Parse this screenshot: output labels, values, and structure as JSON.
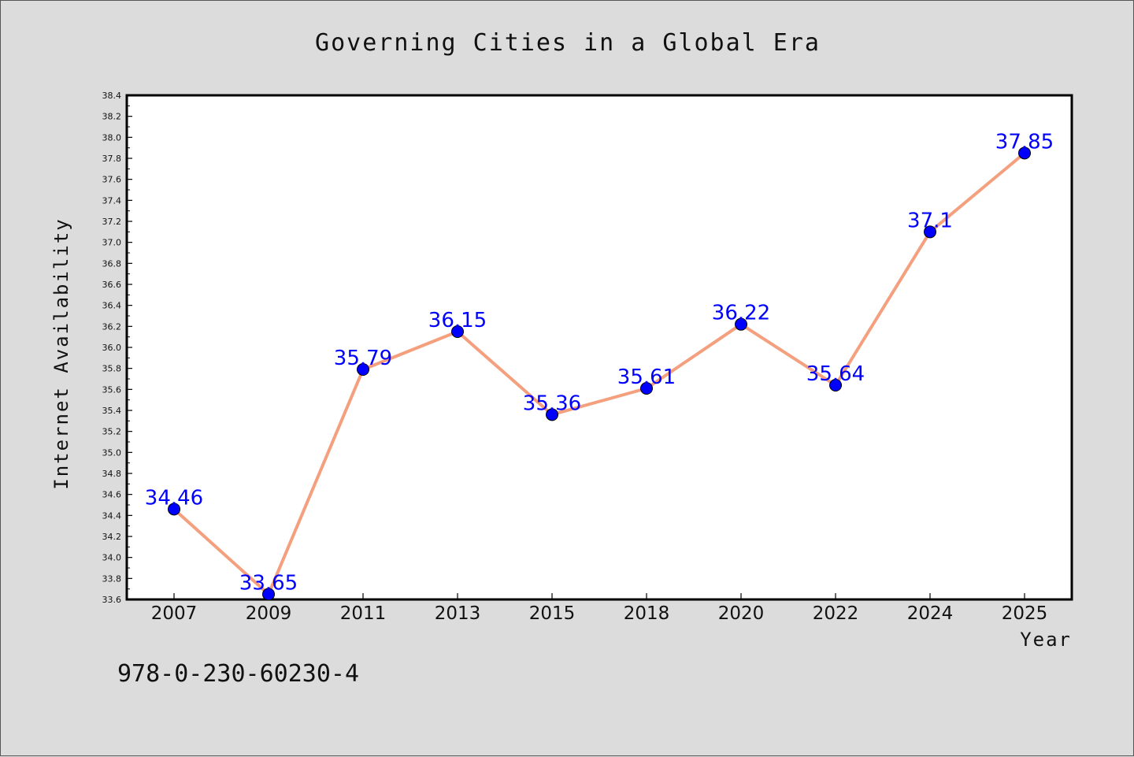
{
  "chart_data": {
    "type": "line",
    "title": "Governing Cities in a Global Era",
    "xlabel": "Year",
    "ylabel": "Internet Availability",
    "categories": [
      "2007",
      "2009",
      "2011",
      "2013",
      "2015",
      "2018",
      "2020",
      "2022",
      "2024",
      "2025"
    ],
    "values": [
      34.46,
      33.65,
      35.79,
      36.15,
      35.36,
      35.61,
      36.22,
      35.64,
      37.1,
      37.85
    ],
    "data_labels": [
      "34.46",
      "33.65",
      "35.79",
      "36.15",
      "35.36",
      "35.61",
      "36.22",
      "35.64",
      "37.1",
      "37.85"
    ],
    "ylim": [
      33.6,
      38.4
    ],
    "yticks": [
      "33.6",
      "33.8",
      "34.0",
      "34.2",
      "34.4",
      "34.6",
      "34.8",
      "35.0",
      "35.2",
      "35.4",
      "35.6",
      "35.8",
      "36.0",
      "36.2",
      "36.4",
      "36.6",
      "36.8",
      "37.0",
      "37.2",
      "37.4",
      "37.6",
      "37.8",
      "38.0",
      "38.2",
      "38.4"
    ],
    "grid": false,
    "legend": "none",
    "line_color": "#f4a07e",
    "marker_color": "#0000ff",
    "label_color": "#0000ff",
    "background": "#dcdcdc",
    "plot_background": "#ffffff"
  },
  "footnote": "978-0-230-60230-4"
}
